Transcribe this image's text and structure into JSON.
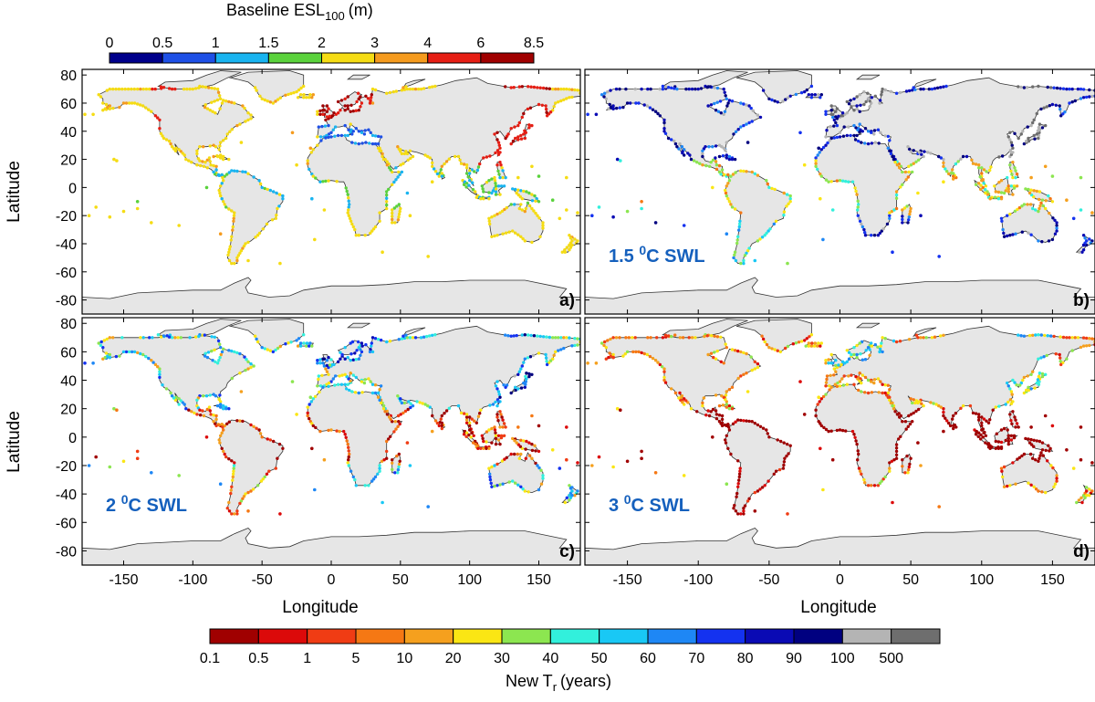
{
  "top_colorbar": {
    "title": "Baseline ESL",
    "title_sub": "100",
    "title_unit": "(m)",
    "ticks": [
      "0",
      "0.5",
      "1",
      "1.5",
      "2",
      "3",
      "4",
      "6",
      "8.5"
    ],
    "colors": [
      "#00008b",
      "#1e50e6",
      "#19b4f0",
      "#5ad23c",
      "#f5dc14",
      "#f59b1e",
      "#e61e14",
      "#a00000"
    ]
  },
  "bottom_colorbar": {
    "title": "New T",
    "title_sub": "r",
    "title_unit": "(years)",
    "ticks": [
      "0.1",
      "0.5",
      "1",
      "5",
      "10",
      "20",
      "30",
      "40",
      "50",
      "60",
      "70",
      "80",
      "90",
      "100",
      "500"
    ],
    "colors": [
      "#a00000",
      "#dc0a0a",
      "#f03c14",
      "#f57814",
      "#f5a01e",
      "#fae614",
      "#8ce650",
      "#32f0dc",
      "#19c8f5",
      "#1e87f5",
      "#1432f0",
      "#0a0ab4",
      "#000080",
      "#b4b4b4",
      "#6e6e6e"
    ]
  },
  "axes": {
    "x_ticks": [
      "-150",
      "-100",
      "-50",
      "0",
      "50",
      "100",
      "150"
    ],
    "y_ticks": [
      "80",
      "60",
      "40",
      "20",
      "0",
      "-20",
      "-40",
      "-60",
      "-80"
    ],
    "xlabel": "Longitude",
    "ylabel": "Latitude",
    "xlim": [
      -180,
      180
    ],
    "ylim": [
      -90,
      84
    ]
  },
  "panels": [
    {
      "id": "a",
      "label": "a)",
      "subtitle": ""
    },
    {
      "id": "b",
      "label": "b)",
      "subtitle": "1.5",
      "subtitle_unit": "C SWL"
    },
    {
      "id": "c",
      "label": "c)",
      "subtitle": "2",
      "subtitle_unit": "C SWL"
    },
    {
      "id": "d",
      "label": "d)",
      "subtitle": "3",
      "subtitle_unit": "C SWL"
    }
  ],
  "degree_marker": "0",
  "colors": {
    "land": "#e6e6e6",
    "coast": "#333333",
    "swl_text": "#1560bd"
  }
}
